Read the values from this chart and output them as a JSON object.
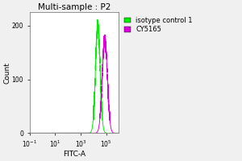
{
  "title": "Multi-sample : P2",
  "xlabel": "FITC-A",
  "ylabel": "Count",
  "ylim": [
    0,
    225
  ],
  "yticks": [
    0,
    100,
    200
  ],
  "green_peak_log": 4.35,
  "green_sigma": 0.18,
  "green_amplitude": 200,
  "magenta_peak_log": 4.9,
  "magenta_sigma": 0.2,
  "magenta_amplitude": 175,
  "green_color": "#00ee00",
  "magenta_color": "#dd00dd",
  "bg_color": "#ffffff",
  "fig_color": "#f0f0f0",
  "legend_labels": [
    "isotype control 1",
    "CY5165"
  ],
  "legend_colors": [
    "#00ee00",
    "#dd00dd"
  ],
  "title_fontsize": 7.5,
  "axis_fontsize": 6.5,
  "tick_fontsize": 5.5,
  "legend_fontsize": 6
}
